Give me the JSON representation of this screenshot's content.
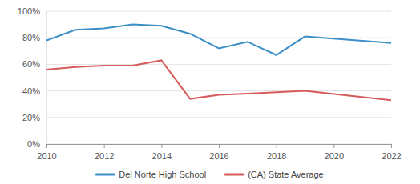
{
  "chart_data": {
    "type": "line",
    "x": [
      2010,
      2011,
      2012,
      2013,
      2014,
      2015,
      2016,
      2017,
      2018,
      2019,
      2022
    ],
    "series": [
      {
        "name": "Del Norte High School",
        "color": "#3a8fc6",
        "values": [
          78,
          86,
          87,
          90,
          89,
          83,
          72,
          77,
          67,
          81,
          76
        ]
      },
      {
        "name": "(CA) State Average",
        "color": "#d65b5b",
        "values": [
          56,
          58,
          59,
          59,
          63,
          34,
          37,
          38,
          39,
          40,
          33
        ]
      }
    ],
    "xlim": [
      2010,
      2022
    ],
    "xticks": [
      2010,
      2012,
      2014,
      2016,
      2018,
      2020,
      2022
    ],
    "ylim": [
      0,
      100
    ],
    "yticks": [
      {
        "value": 0,
        "label": "0%"
      },
      {
        "value": 20,
        "label": "20%"
      },
      {
        "value": 40,
        "label": "40%"
      },
      {
        "value": 60,
        "label": "60%"
      },
      {
        "value": 80,
        "label": "80%"
      },
      {
        "value": 100,
        "label": "100%"
      }
    ],
    "grid": true,
    "legend": "bottom"
  }
}
